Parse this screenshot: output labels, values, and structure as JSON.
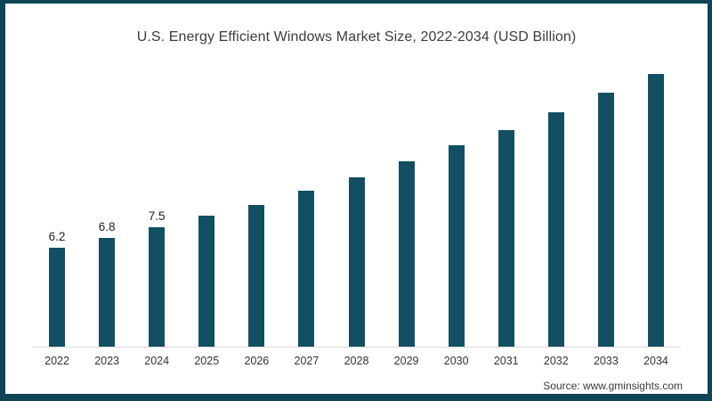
{
  "title": "U.S. Energy Efficient Windows Market Size, 2022-2034 (USD Billion)",
  "source": "Source: www.gminsights.com",
  "colors": {
    "bar": "#134f63",
    "frame_border": "#0f4557",
    "axis_line": "#d9d9d9",
    "title_text": "#3c3c3c",
    "tick_text": "#333333",
    "data_label_text": "#1f1f1f",
    "source_text": "#3a3a3a",
    "background": "#ffffff"
  },
  "chart_data": {
    "type": "bar",
    "title": "U.S. Energy Efficient Windows Market Size, 2022-2034 (USD Billion)",
    "categories": [
      "2022",
      "2023",
      "2024",
      "2025",
      "2026",
      "2027",
      "2028",
      "2029",
      "2030",
      "2031",
      "2032",
      "2033",
      "2034"
    ],
    "values": [
      6.2,
      6.8,
      7.5,
      8.2,
      8.9,
      9.8,
      10.6,
      11.6,
      12.6,
      13.6,
      14.7,
      15.9,
      17.1
    ],
    "data_labels": [
      "6.2",
      "6.8",
      "7.5",
      "",
      "",
      "",
      "",
      "",
      "",
      "",
      "",
      "",
      ""
    ],
    "xlabel": "",
    "ylabel": "",
    "ylim": [
      0,
      19
    ],
    "grid": false,
    "legend": false,
    "y_axis_visible": false,
    "baseline_visible": true,
    "source_note": "Source: www.gminsights.com"
  }
}
